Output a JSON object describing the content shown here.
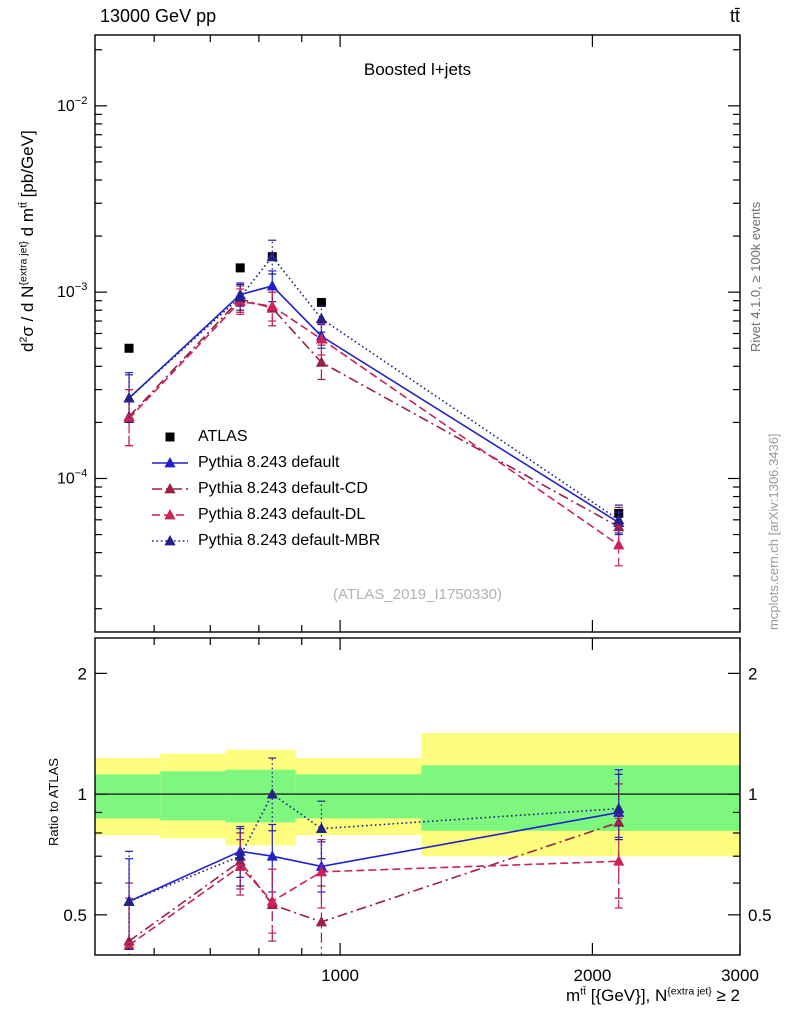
{
  "header": {
    "title_left": "13000 GeV pp",
    "title_right": "tt̄"
  },
  "side_labels": {
    "rivet": "Rivet 4.1.0, ≥ 100k events",
    "mcplots": "mcplots.cern.ch [arXiv:1306.3436]"
  },
  "main_panel": {
    "annotation": "Boosted l+jets",
    "watermark": "(ATLAS_2019_I1750330)",
    "ylabel_parts": [
      {
        "t": "d"
      },
      {
        "t": "2",
        "sup": true
      },
      {
        "t": "σ / d N"
      },
      {
        "t": "{extra jet}",
        "sup": true
      },
      {
        "t": " d m"
      },
      {
        "t": "tt̄",
        "sup": true
      },
      {
        "t": " [pb/GeV]"
      }
    ]
  },
  "ratio_panel": {
    "ylabel": "Ratio to ATLAS"
  },
  "xaxis": {
    "label_parts": [
      {
        "t": "m"
      },
      {
        "t": "tt̄",
        "sup": true
      },
      {
        "t": " [{GeV}], N"
      },
      {
        "t": "{extra jet}",
        "sup": true
      },
      {
        "t": " ≥ 2"
      }
    ]
  },
  "chart_data": {
    "type": "line",
    "x_scale": "log",
    "xlim": [
      510,
      3000
    ],
    "x_units": "GeV",
    "x": [
      560,
      760,
      830,
      950,
      2150
    ],
    "xticks_major": [
      1000,
      2000,
      3000
    ],
    "xticks_minor": [
      500,
      600,
      700,
      800,
      900
    ],
    "main": {
      "y_scale": "log",
      "ylim": [
        1.5e-05,
        0.024
      ],
      "ytick_exponents": [
        -2,
        -3,
        -4
      ]
    },
    "ratio": {
      "y_scale": "log",
      "ylim": [
        0.397,
        2.45
      ],
      "yticks_major": [
        0.5,
        1,
        2
      ],
      "yticks_minor": [
        0.6,
        0.7,
        0.8,
        0.9
      ]
    },
    "band_colors": {
      "outer": "#fdfd7e",
      "inner": "#7df77d"
    },
    "ratio_bands": [
      {
        "x0": 510,
        "x1": 610,
        "yellow": [
          0.79,
          1.23
        ],
        "green": [
          0.87,
          1.12
        ]
      },
      {
        "x0": 610,
        "x1": 730,
        "yellow": [
          0.775,
          1.26
        ],
        "green": [
          0.86,
          1.14
        ]
      },
      {
        "x0": 730,
        "x1": 885,
        "yellow": [
          0.745,
          1.29
        ],
        "green": [
          0.85,
          1.15
        ]
      },
      {
        "x0": 885,
        "x1": 1250,
        "yellow": [
          0.79,
          1.23
        ],
        "green": [
          0.87,
          1.12
        ]
      },
      {
        "x0": 1250,
        "x1": 3000,
        "yellow": [
          0.7,
          1.42
        ],
        "green": [
          0.81,
          1.18
        ]
      }
    ],
    "series": [
      {
        "name": "ATLAS",
        "role": "reference",
        "marker": "square",
        "color": "#000000",
        "line": "none",
        "values": [
          0.0005,
          0.00135,
          0.00155,
          0.00088,
          6.5e-05
        ]
      },
      {
        "name": "Pythia 8.243 default",
        "marker": "triangle",
        "color": "#2222cc",
        "line": "solid",
        "values": [
          0.00027,
          0.00097,
          0.00108,
          0.00058,
          5.8e-05
        ],
        "err_lo": [
          0.00021,
          0.00084,
          0.00089,
          0.0005,
          5.1e-05
        ],
        "err_hi": [
          0.00037,
          0.00112,
          0.0013,
          0.00067,
          6.6e-05
        ],
        "ratio": [
          0.54,
          0.72,
          0.7,
          0.66,
          0.9
        ],
        "ratio_lo": [
          0.42,
          0.62,
          0.57,
          0.57,
          0.78
        ],
        "ratio_hi": [
          0.69,
          0.83,
          0.84,
          0.76,
          1.15
        ]
      },
      {
        "name": "Pythia 8.243 default-CD",
        "marker": "triangle",
        "color": "#992244",
        "line": "dashdot",
        "values": [
          0.000215,
          0.00092,
          0.00082,
          0.00042,
          5.5e-05
        ],
        "err_lo": [
          0.00015,
          0.00078,
          0.00066,
          0.00034,
          4.3e-05
        ],
        "err_hi": [
          0.0003,
          0.00108,
          0.001,
          0.00052,
          7e-05
        ],
        "ratio": [
          0.43,
          0.68,
          0.53,
          0.48,
          0.85
        ],
        "ratio_lo": [
          0.3,
          0.58,
          0.43,
          0.38,
          0.55
        ],
        "ratio_hi": [
          0.6,
          0.8,
          0.65,
          0.59,
          1.06
        ]
      },
      {
        "name": "Pythia 8.243 default-DL",
        "marker": "triangle",
        "color": "#cc2255",
        "line": "dashed",
        "values": [
          0.00021,
          0.00089,
          0.00084,
          0.00056,
          4.4e-05
        ],
        "err_lo": [
          0.00015,
          0.00076,
          0.0007,
          0.00046,
          3.4e-05
        ],
        "err_hi": [
          0.0003,
          0.00104,
          0.001,
          0.00068,
          5.7e-05
        ],
        "ratio": [
          0.42,
          0.66,
          0.54,
          0.64,
          0.68
        ],
        "ratio_lo": [
          0.31,
          0.56,
          0.45,
          0.52,
          0.52
        ],
        "ratio_hi": [
          0.55,
          0.77,
          0.65,
          0.77,
          0.87
        ]
      },
      {
        "name": "Pythia 8.243 default-MBR",
        "marker": "triangle",
        "color": "#222288",
        "line": "dotted",
        "values": [
          0.00027,
          0.00094,
          0.00155,
          0.00072,
          6e-05
        ],
        "err_lo": [
          0.0002,
          0.0008,
          0.00125,
          0.00061,
          5e-05
        ],
        "err_hi": [
          0.00036,
          0.0011,
          0.0019,
          0.00084,
          7.2e-05
        ],
        "ratio": [
          0.54,
          0.7,
          1.0,
          0.82,
          0.92
        ],
        "ratio_lo": [
          0.41,
          0.59,
          0.81,
          0.69,
          0.77
        ],
        "ratio_hi": [
          0.72,
          0.82,
          1.23,
          0.96,
          1.12
        ]
      }
    ]
  }
}
